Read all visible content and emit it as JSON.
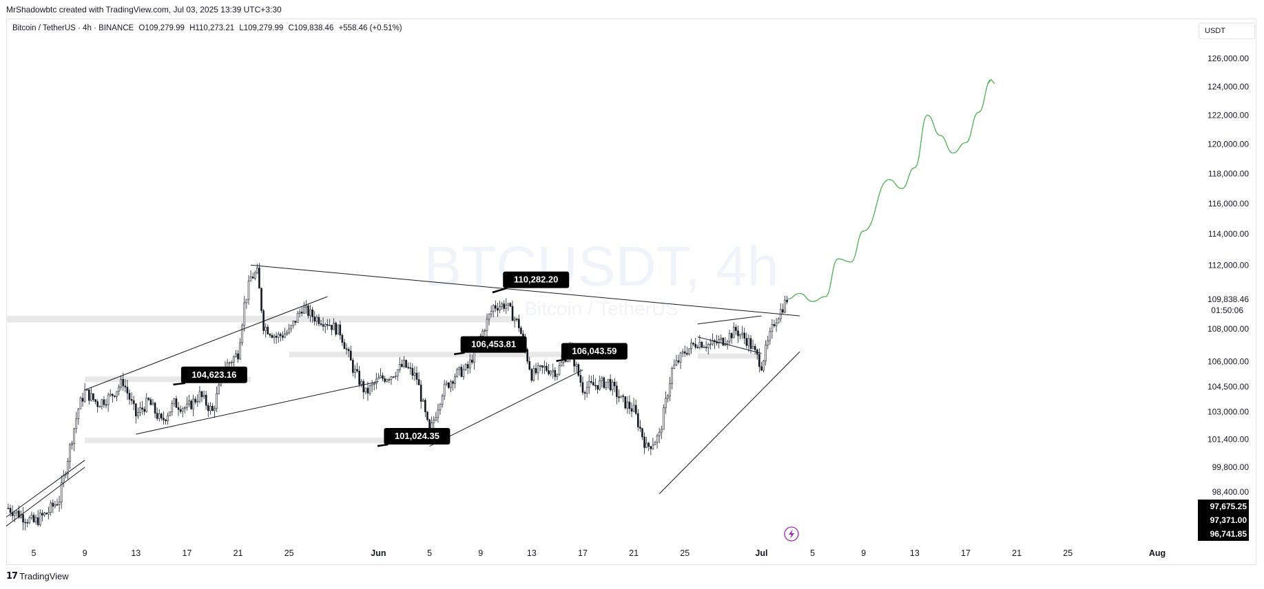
{
  "header": {
    "credit": "MrShadowbtc created with TradingView.com, Jul 03, 2025 13:39 UTC+3:30"
  },
  "symbol": {
    "name": "Bitcoin / TetherUS · 4h · BINANCE",
    "open": "O109,279.99",
    "high": "H110,273.21",
    "low": "L109,279.99",
    "close": "C109,838.46",
    "change": "+558.46 (+0.51%)"
  },
  "currency": "USDT",
  "watermark": {
    "ticker": "BTCUSDT, 4h",
    "name": "Bitcoin / TetherUS"
  },
  "brand": {
    "logo": "TradingView"
  },
  "colors": {
    "candle": "#131722",
    "projection": "#4caf50",
    "label_bg": "#000000",
    "zone": "#e8e8e8",
    "lightning": "#9c27b0"
  },
  "chart_data": {
    "type": "candlestick",
    "symbol": "BTCUSDT",
    "interval": "4h",
    "exchange": "BINANCE",
    "y_ticks": [
      126000,
      124000,
      122000,
      120000,
      118000,
      116000,
      114000,
      112000,
      108000,
      106000,
      104500,
      103000,
      101400,
      99800,
      98400
    ],
    "y_tick_labels": [
      "126,000.00",
      "124,000.00",
      "122,000.00",
      "120,000.00",
      "118,000.00",
      "116,000.00",
      "114,000.00",
      "112,000.00",
      "108,000.00",
      "106,000.00",
      "104,500.00",
      "103,000.00",
      "101,400.00",
      "99,800.00",
      "98,400.00"
    ],
    "last_price": {
      "value": 109838.46,
      "label": "109,838.46",
      "countdown": "01:50:06"
    },
    "bottom_labels": [
      "97,675.25",
      "97,371.00",
      "96,741.85"
    ],
    "x_ticks": [
      {
        "date": "2025-05-05",
        "label": "5"
      },
      {
        "date": "2025-05-09",
        "label": "9"
      },
      {
        "date": "2025-05-13",
        "label": "13"
      },
      {
        "date": "2025-05-17",
        "label": "17"
      },
      {
        "date": "2025-05-21",
        "label": "21"
      },
      {
        "date": "2025-05-25",
        "label": "25"
      },
      {
        "date": "2025-06-01",
        "label": "Jun"
      },
      {
        "date": "2025-06-05",
        "label": "5"
      },
      {
        "date": "2025-06-09",
        "label": "9"
      },
      {
        "date": "2025-06-13",
        "label": "13"
      },
      {
        "date": "2025-06-17",
        "label": "17"
      },
      {
        "date": "2025-06-21",
        "label": "21"
      },
      {
        "date": "2025-06-25",
        "label": "25"
      },
      {
        "date": "2025-07-01",
        "label": "Jul"
      },
      {
        "date": "2025-07-05",
        "label": "5"
      },
      {
        "date": "2025-07-09",
        "label": "9"
      },
      {
        "date": "2025-07-13",
        "label": "13"
      },
      {
        "date": "2025-07-17",
        "label": "17"
      },
      {
        "date": "2025-07-21",
        "label": "21"
      },
      {
        "date": "2025-07-25",
        "label": "25"
      },
      {
        "date": "2025-08-01",
        "label": "Aug"
      }
    ],
    "price_path": [
      [
        "2025-05-03",
        97500
      ],
      [
        "2025-05-05",
        96700
      ],
      [
        "2025-05-06",
        97200
      ],
      [
        "2025-05-07",
        98000
      ],
      [
        "2025-05-08",
        101500
      ],
      [
        "2025-05-08 12:00",
        103200
      ],
      [
        "2025-05-09",
        104200
      ],
      [
        "2025-05-10",
        103500
      ],
      [
        "2025-05-11",
        103900
      ],
      [
        "2025-05-12",
        104800
      ],
      [
        "2025-05-13",
        102800
      ],
      [
        "2025-05-14",
        103600
      ],
      [
        "2025-05-15",
        102400
      ],
      [
        "2025-05-16",
        103500
      ],
      [
        "2025-05-17",
        103200
      ],
      [
        "2025-05-18",
        104000
      ],
      [
        "2025-05-19",
        103000
      ],
      [
        "2025-05-20",
        105700
      ],
      [
        "2025-05-21",
        106500
      ],
      [
        "2025-05-21 12:00",
        109500
      ],
      [
        "2025-05-22",
        111200
      ],
      [
        "2025-05-22 12:00",
        111500
      ],
      [
        "2025-05-23",
        108200
      ],
      [
        "2025-05-24",
        107500
      ],
      [
        "2025-05-25",
        107800
      ],
      [
        "2025-05-26",
        109300
      ],
      [
        "2025-05-27",
        108700
      ],
      [
        "2025-05-28",
        108400
      ],
      [
        "2025-05-29",
        107800
      ],
      [
        "2025-05-30",
        105600
      ],
      [
        "2025-05-31",
        104100
      ],
      [
        "2025-06-01",
        104900
      ],
      [
        "2025-06-02",
        105200
      ],
      [
        "2025-06-03",
        105800
      ],
      [
        "2025-06-04",
        105000
      ],
      [
        "2025-06-05",
        101700
      ],
      [
        "2025-06-06",
        104200
      ],
      [
        "2025-06-07",
        105200
      ],
      [
        "2025-06-08",
        105600
      ],
      [
        "2025-06-09",
        107500
      ],
      [
        "2025-06-10",
        109400
      ],
      [
        "2025-06-11",
        109500
      ],
      [
        "2025-06-12",
        108200
      ],
      [
        "2025-06-13",
        105200
      ],
      [
        "2025-06-14",
        105600
      ],
      [
        "2025-06-15",
        105400
      ],
      [
        "2025-06-16",
        106800
      ],
      [
        "2025-06-17",
        104400
      ],
      [
        "2025-06-18",
        104600
      ],
      [
        "2025-06-19",
        104800
      ],
      [
        "2025-06-20",
        103700
      ],
      [
        "2025-06-21",
        103100
      ],
      [
        "2025-06-22",
        100900
      ],
      [
        "2025-06-23",
        101600
      ],
      [
        "2025-06-24",
        105500
      ],
      [
        "2025-06-25",
        106600
      ],
      [
        "2025-06-26",
        107200
      ],
      [
        "2025-06-27",
        107000
      ],
      [
        "2025-06-28",
        107300
      ],
      [
        "2025-06-29",
        107900
      ],
      [
        "2025-06-30",
        107200
      ],
      [
        "2025-07-01",
        105800
      ],
      [
        "2025-07-02",
        108400
      ],
      [
        "2025-07-03",
        109838.46
      ]
    ],
    "projection": [
      [
        "2025-07-03",
        109838
      ],
      [
        "2025-07-04",
        110200
      ],
      [
        "2025-07-05",
        109700
      ],
      [
        "2025-07-06",
        110000
      ],
      [
        "2025-07-07",
        112400
      ],
      [
        "2025-07-08",
        112200
      ],
      [
        "2025-07-09",
        114200
      ],
      [
        "2025-07-11",
        117600
      ],
      [
        "2025-07-12",
        117000
      ],
      [
        "2025-07-13",
        118400
      ],
      [
        "2025-07-14",
        122000
      ],
      [
        "2025-07-15",
        120600
      ],
      [
        "2025-07-16",
        119400
      ],
      [
        "2025-07-17",
        120100
      ],
      [
        "2025-07-18",
        122200
      ],
      [
        "2025-07-19",
        124500
      ]
    ],
    "price_labels": [
      {
        "label": "110,282.20",
        "date": "2025-06-10",
        "price": 110282.2
      },
      {
        "label": "106,453.81",
        "date": "2025-06-07",
        "price": 106453.81
      },
      {
        "label": "106,043.59",
        "date": "2025-06-15",
        "price": 106043.59
      },
      {
        "label": "104,623.16",
        "date": "2025-05-16",
        "price": 104623.16
      },
      {
        "label": "101,024.35",
        "date": "2025-06-01",
        "price": 101024.35
      }
    ],
    "zones": [
      {
        "from": "2025-05-02",
        "to": "2025-06-12",
        "low": 108400,
        "high": 108800
      },
      {
        "from": "2025-05-25",
        "to": "2025-06-18",
        "low": 106300,
        "high": 106600
      },
      {
        "from": "2025-05-09",
        "to": "2025-06-05",
        "low": 101200,
        "high": 101500
      },
      {
        "from": "2025-05-09",
        "to": "2025-05-22",
        "low": 104800,
        "high": 105100
      },
      {
        "from": "2025-06-26",
        "to": "2025-07-01",
        "low": 106300,
        "high": 106500
      }
    ],
    "trendlines": [
      [
        [
          "2025-05-22",
          112000
        ],
        [
          "2025-07-04",
          108800
        ]
      ],
      [
        [
          "2025-05-13",
          101700
        ],
        [
          "2025-06-01",
          104800
        ]
      ],
      [
        [
          "2025-05-09",
          104300
        ],
        [
          "2025-05-28",
          110000
        ]
      ],
      [
        [
          "2025-06-05",
          101000
        ],
        [
          "2025-06-17",
          105500
        ]
      ],
      [
        [
          "2025-06-23",
          98300
        ],
        [
          "2025-07-04",
          106600
        ]
      ],
      [
        [
          "2025-06-26",
          108300
        ],
        [
          "2025-07-01",
          108800
        ]
      ],
      [
        [
          "2025-06-26",
          107500
        ],
        [
          "2025-07-01",
          106500
        ]
      ],
      [
        [
          "2025-05-02",
          97000
        ],
        [
          "2025-05-09",
          100200
        ]
      ],
      [
        [
          "2025-05-02",
          96500
        ],
        [
          "2025-05-09",
          99800
        ]
      ]
    ],
    "y_scale": "log",
    "ylim": [
      96300,
      127000
    ],
    "grid": false
  }
}
